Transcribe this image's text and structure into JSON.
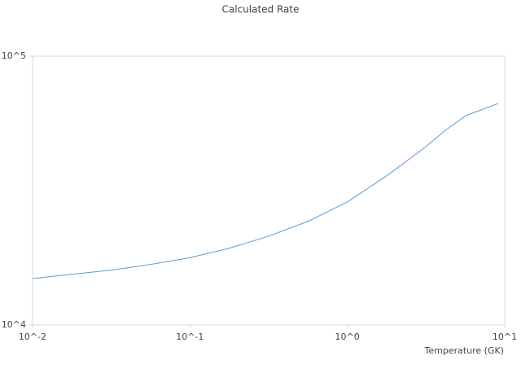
{
  "chart_data": {
    "type": "line",
    "title": "Calculated Rate",
    "x_label": "Temperature (GK)",
    "x": [
      0.01,
      0.0316,
      0.0562,
      0.1,
      0.178,
      0.316,
      0.562,
      1,
      1.78,
      3.16,
      4.2,
      5.65,
      9.1
    ],
    "series": [
      {
        "color": "#5b9bd5",
        "values": [
          14900,
          16000,
          16800,
          17800,
          19300,
          21400,
          24300,
          28700,
          35900,
          46100,
          53000,
          60100,
          66700
        ]
      }
    ],
    "xlim": [
      0.01,
      10
    ],
    "ylim": [
      10000,
      100000
    ],
    "xticks": [
      {
        "value": 0.01,
        "label": "10^-2"
      },
      {
        "value": 0.1,
        "label": "10^-1"
      },
      {
        "value": 1,
        "label": "10^0"
      },
      {
        "value": 10,
        "label": "10^1"
      }
    ],
    "yticks": [
      {
        "value": 10000,
        "label": "10^4"
      },
      {
        "value": 100000,
        "label": "10^5"
      }
    ],
    "x_log": true,
    "y_log": true
  }
}
